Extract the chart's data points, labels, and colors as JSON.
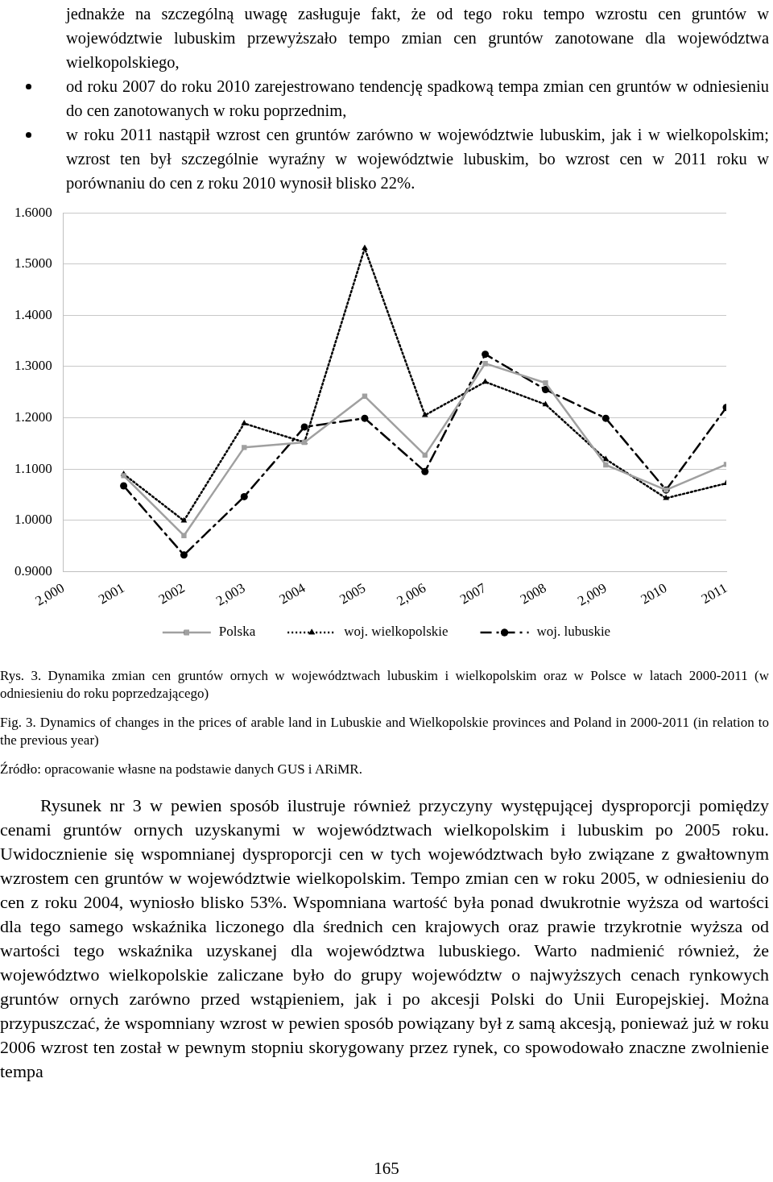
{
  "chart_data": {
    "type": "line",
    "x": [
      2001,
      2002,
      2003,
      2004,
      2005,
      2006,
      2007,
      2008,
      2009,
      2010,
      2011
    ],
    "xlim": [
      2000,
      2011
    ],
    "xticks": [
      {
        "value": 2000,
        "label": "2,000"
      },
      2001,
      2002,
      {
        "value": 2003,
        "label": "2,003"
      },
      2004,
      2005,
      {
        "value": 2006,
        "label": "2,006"
      },
      2007,
      2008,
      {
        "value": 2009,
        "label": "2,009"
      },
      2010,
      2011
    ],
    "ylim": [
      0.9,
      1.6
    ],
    "yticks": [
      {
        "value": 0.9,
        "label": "0.9000"
      },
      {
        "value": 1.0,
        "label": "1.0000"
      },
      {
        "value": 1.1,
        "label": "1.1000"
      },
      {
        "value": 1.2,
        "label": "1.2000"
      },
      {
        "value": 1.3,
        "label": "1.3000"
      },
      {
        "value": 1.4,
        "label": "1.4000"
      },
      {
        "value": 1.5,
        "label": "1.5000"
      },
      {
        "value": 1.6,
        "label": "1.6000"
      }
    ],
    "grid": "y",
    "legend": "bottom",
    "series": [
      {
        "name": "Polska",
        "color": "#a0a0a0",
        "marker": "square",
        "line_style": "solid",
        "values": [
          1.087,
          0.97,
          1.142,
          1.152,
          1.242,
          1.127,
          1.306,
          1.268,
          1.108,
          1.059,
          1.109
        ]
      },
      {
        "name": "woj. wielkopolskie",
        "color": "#000000",
        "marker": "triangle",
        "line_style": "dotted",
        "values": [
          1.09,
          0.999,
          1.189,
          1.152,
          1.531,
          1.205,
          1.27,
          1.226,
          1.119,
          1.043,
          1.072
        ]
      },
      {
        "name": "woj. lubuskie",
        "color": "#000000",
        "marker": "circle",
        "line_style": "dashed",
        "values": [
          1.067,
          0.932,
          1.046,
          1.182,
          1.199,
          1.095,
          1.324,
          1.255,
          1.199,
          1.059,
          1.22
        ]
      }
    ],
    "annotations": [
      "jednakże na szczególną uwagę zasługuje fakt, że od tego roku tempo wzrostu cen gruntów w województwie lubuskim przewyższało tempo zmian cen gruntów zanotowane dla województwa wielkopolskiego,",
      "od roku 2007 do roku 2010 zarejestrowano tendencję spadkową tempa zmian cen gruntów w odniesieniu do cen zanotowanych w roku poprzednim,",
      "w roku 2011 nastąpił wzrost cen gruntów zarówno w województwie lubuskim, jak i w wielkopolskim; wzrost ten był szczególnie wyraźny w województwie lubuskim, bo wzrost cen w 2011 roku w porównaniu do cen z roku 2010 wynosił blisko 22%.",
      "Rys. 3. Dynamika zmian cen gruntów ornych w województwach lubuskim i wielkopolskim oraz w Polsce w latach 2000-2011 (w odniesieniu do roku poprzedzającego)",
      "Fig. 3. Dynamics of changes in the prices of arable land in Lubuskie and Wielkopolskie provinces and Poland in 2000-2011 (in relation to the previous year)",
      "Źródło: opracowanie własne na podstawie danych GUS i ARiMR.",
      "Rysunek nr 3 w pewien sposób ilustruje również przyczyny występującej dysproporcji pomiędzy cenami gruntów ornych uzyskanymi w województwach wielkopolskim i lubuskim po 2005 roku. Uwidocznienie się wspomnianej dysproporcji cen w tych województwach było związane z gwałtownym wzrostem cen gruntów w województwie wielkopolskim. Tempo zmian cen w roku 2005, w odniesieniu do cen z roku 2004, wyniosło blisko 53%. Wspomniana wartość była ponad dwukrotnie wyższa od wartości dla tego samego wskaźnika liczonego dla średnich cen krajowych oraz prawie trzykrotnie wyższa od wartości tego wskaźnika uzyskanej dla województwa lubuskiego. Warto nadmienić również, że województwo wielkopolskie zaliczane było do grupy województw o najwyższych cenach rynkowych gruntów ornych zarówno przed wstąpieniem, jak i po akcesji Polski do Unii Europejskiej. Można przypuszczać, że wspomniany wzrost w pewien sposób powiązany był z samą akcesją, ponieważ już w roku 2006 wzrost ten został w pewnym stopniu skorygowany przez rynek, co spowodowało znaczne zwolnienie tempa",
      "165"
    ]
  }
}
